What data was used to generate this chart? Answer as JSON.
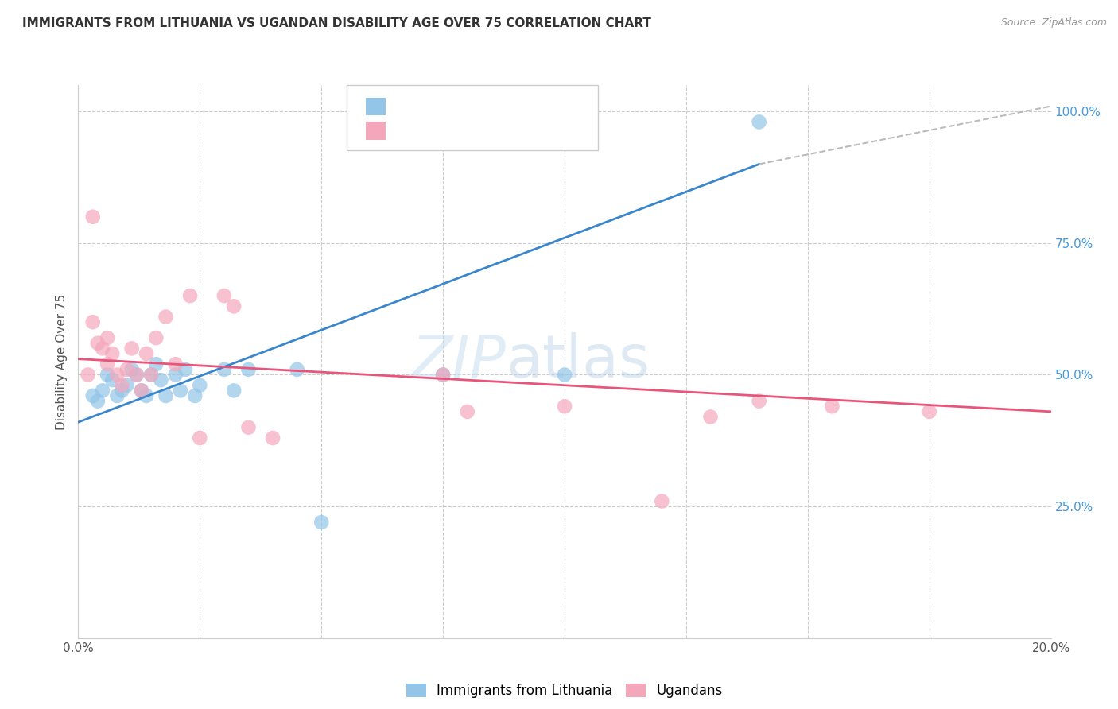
{
  "title": "IMMIGRANTS FROM LITHUANIA VS UGANDAN DISABILITY AGE OVER 75 CORRELATION CHART",
  "source": "Source: ZipAtlas.com",
  "ylabel_label": "Disability Age Over 75",
  "xlim": [
    0.0,
    20.0
  ],
  "ylim": [
    0.0,
    105.0
  ],
  "right_yticks": [
    25.0,
    50.0,
    75.0,
    100.0
  ],
  "x_gridlines": [
    2.5,
    5.0,
    7.5,
    10.0,
    12.5,
    15.0,
    17.5
  ],
  "watermark_zip": "ZIP",
  "watermark_atlas": "atlas",
  "legend_label_blue": "Immigrants from Lithuania",
  "legend_label_pink": "Ugandans",
  "blue_color": "#92c5e8",
  "pink_color": "#f4a7bb",
  "trend_blue_color": "#3a86cc",
  "trend_pink_color": "#e8547a",
  "blue_scatter_x": [
    0.3,
    0.4,
    0.5,
    0.6,
    0.7,
    0.8,
    0.9,
    1.0,
    1.1,
    1.2,
    1.3,
    1.4,
    1.5,
    1.6,
    1.7,
    1.8,
    2.0,
    2.1,
    2.2,
    2.4,
    2.5,
    3.0,
    3.2,
    3.5,
    4.5,
    5.0,
    7.5,
    10.0,
    14.0
  ],
  "blue_scatter_y": [
    46,
    45,
    47,
    50,
    49,
    46,
    47,
    48,
    51,
    50,
    47,
    46,
    50,
    52,
    49,
    46,
    50,
    47,
    51,
    46,
    48,
    51,
    47,
    51,
    51,
    22,
    50,
    50,
    98
  ],
  "pink_scatter_x": [
    0.2,
    0.3,
    0.4,
    0.5,
    0.6,
    0.6,
    0.7,
    0.8,
    0.9,
    1.0,
    1.1,
    1.2,
    1.3,
    1.4,
    1.5,
    1.6,
    1.8,
    2.0,
    2.3,
    2.5,
    3.0,
    3.2,
    3.5,
    4.0,
    7.5,
    8.0,
    10.0,
    12.0,
    13.0,
    14.0,
    15.5,
    17.5
  ],
  "pink_scatter_y": [
    50,
    60,
    56,
    55,
    57,
    52,
    54,
    50,
    48,
    51,
    55,
    50,
    47,
    54,
    50,
    57,
    61,
    52,
    65,
    38,
    65,
    63,
    40,
    38,
    50,
    43,
    44,
    26,
    42,
    45,
    44,
    43
  ],
  "pink_outlier_x": [
    0.3
  ],
  "pink_outlier_y": [
    80
  ],
  "blue_trend_x0": 0.0,
  "blue_trend_y0": 41.0,
  "blue_trend_x1": 14.0,
  "blue_trend_y1": 90.0,
  "pink_trend_x0": 0.0,
  "pink_trend_y0": 53.0,
  "pink_trend_x1": 20.0,
  "pink_trend_y1": 43.0,
  "dashed_x0": 14.0,
  "dashed_y0": 90.0,
  "dashed_x1": 20.0,
  "dashed_y1": 101.0
}
